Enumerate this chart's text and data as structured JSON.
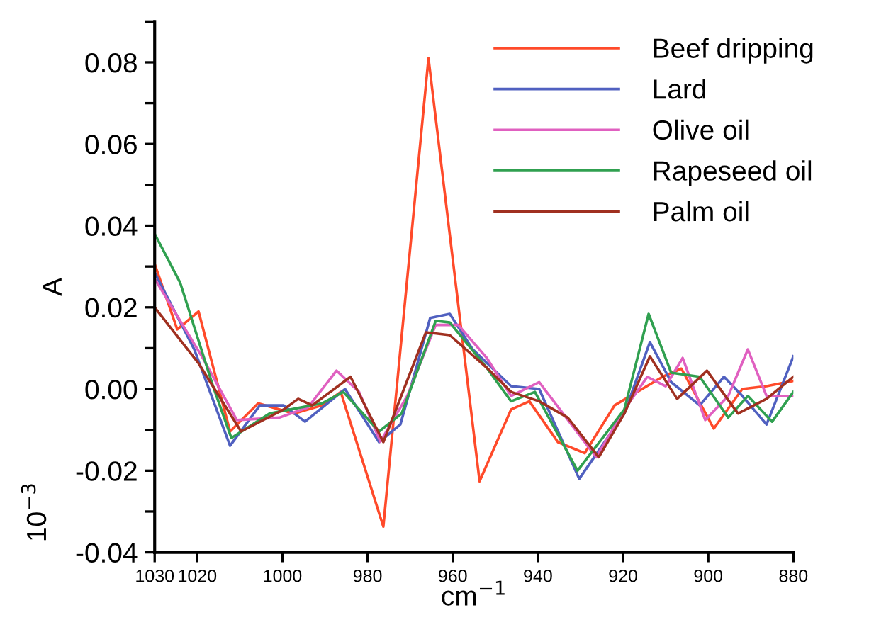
{
  "chart_data": {
    "type": "line",
    "xlabel": "cm$^{−1}$",
    "ylabel": "A",
    "annotations": [
      "10$^{−3}$"
    ],
    "xlim": [
      1030,
      880
    ],
    "xticks": [
      1030,
      1020,
      1000,
      980,
      960,
      940,
      920,
      900,
      880
    ],
    "ylim": [
      -0.04,
      0.09
    ],
    "yticks": [
      -0.04,
      {
        "value": -0.03,
        "label": null
      },
      -0.02,
      {
        "value": -0.01,
        "label": null
      },
      {
        "value": 0,
        "label": "0.00"
      },
      {
        "value": 0.01,
        "label": null
      },
      0.02,
      {
        "value": 0.03,
        "label": null
      },
      0.04,
      {
        "value": 0.05,
        "label": null
      },
      0.06,
      {
        "value": 0.07,
        "label": null
      },
      0.08,
      {
        "value": 0.09,
        "label": null
      }
    ],
    "legend": "top right",
    "grid": false,
    "marker": "none",
    "line_style": "solid",
    "series": [
      {
        "name": "Beef dripping",
        "color": "#ff4a2a",
        "x": [
          1030,
          1024.7,
          1019.7,
          1012.3,
          1005.7,
          997.3,
          990.7,
          986.3,
          976.3,
          965.7,
          953.7,
          946.3,
          942,
          935.3,
          929,
          922,
          910.7,
          906.3,
          898.7,
          892,
          886.3,
          880
        ],
        "values": [
          0.0306,
          0.0146,
          0.019,
          -0.0104,
          -0.0035,
          -0.006,
          -0.004,
          -0.0007,
          -0.0337,
          0.081,
          -0.0226,
          -0.005,
          -0.003,
          -0.013,
          -0.0157,
          -0.004,
          0.003,
          0.005,
          -0.0097,
          0.0,
          0.0007,
          0.002
        ]
      },
      {
        "name": "Lard",
        "color": "#5060c0",
        "x": [
          1030,
          1020.7,
          1012.3,
          1005.3,
          999.7,
          994.7,
          985.3,
          977.3,
          972.3,
          965.3,
          960.7,
          955.3,
          946.3,
          939.7,
          930.3,
          919.7,
          913.7,
          908.7,
          902,
          896.3,
          892,
          886.3,
          880
        ],
        "values": [
          0.0285,
          0.0097,
          -0.0139,
          -0.004,
          -0.004,
          -0.008,
          0.0,
          -0.013,
          -0.0087,
          0.0174,
          0.0184,
          0.0097,
          0.0007,
          0.0,
          -0.022,
          -0.006,
          0.0115,
          0.0017,
          -0.004,
          0.003,
          -0.0017,
          -0.0087,
          0.008
        ]
      },
      {
        "name": "Olive oil",
        "color": "#e060c0",
        "x": [
          1030,
          1018.7,
          1010.7,
          1000.7,
          994,
          987.3,
          982,
          977,
          970.7,
          964,
          958.7,
          952,
          946.3,
          939.7,
          926.3,
          919.7,
          914.3,
          910,
          906,
          900.7,
          895.3,
          890.7,
          886.3,
          880
        ],
        "values": [
          0.027,
          0.0076,
          -0.0076,
          -0.007,
          -0.0045,
          0.0045,
          -0.0007,
          -0.0129,
          -0.0017,
          0.0157,
          0.0157,
          0.0076,
          -0.0017,
          0.0017,
          -0.0167,
          -0.005,
          0.003,
          0.0007,
          0.0076,
          -0.0076,
          -0.0017,
          0.0097,
          -0.0017,
          -0.0017
        ]
      },
      {
        "name": "Rapeseed oil",
        "color": "#30a050",
        "x": [
          1030,
          1024,
          1016.3,
          1012,
          1003,
          990.7,
          985.7,
          977.3,
          972,
          964,
          960.7,
          952,
          946.3,
          940.7,
          930.7,
          919.7,
          914,
          908.7,
          902,
          895.3,
          890.7,
          885,
          880
        ],
        "values": [
          0.038,
          0.026,
          0.0007,
          -0.012,
          -0.006,
          -0.0035,
          -0.0007,
          -0.0104,
          -0.006,
          0.0167,
          0.0163,
          0.0052,
          -0.003,
          -0.0007,
          -0.02,
          -0.005,
          0.0184,
          0.004,
          0.003,
          -0.007,
          -0.0017,
          -0.008,
          -0.0007
        ]
      },
      {
        "name": "Palm oil",
        "color": "#a03020",
        "x": [
          1030,
          1019.7,
          1009.7,
          999.7,
          996.3,
          993,
          984,
          976.3,
          966.3,
          960.7,
          952,
          946.3,
          939.7,
          933,
          925.7,
          919.7,
          913.7,
          907.3,
          900.3,
          893,
          886.3,
          880
        ],
        "values": [
          0.02,
          0.0063,
          -0.0104,
          -0.005,
          -0.0024,
          -0.004,
          0.003,
          -0.013,
          0.0139,
          0.0132,
          0.0052,
          -0.0007,
          -0.003,
          -0.007,
          -0.0167,
          -0.006,
          0.008,
          -0.0024,
          0.0045,
          -0.006,
          -0.0024,
          0.003
        ]
      }
    ]
  }
}
